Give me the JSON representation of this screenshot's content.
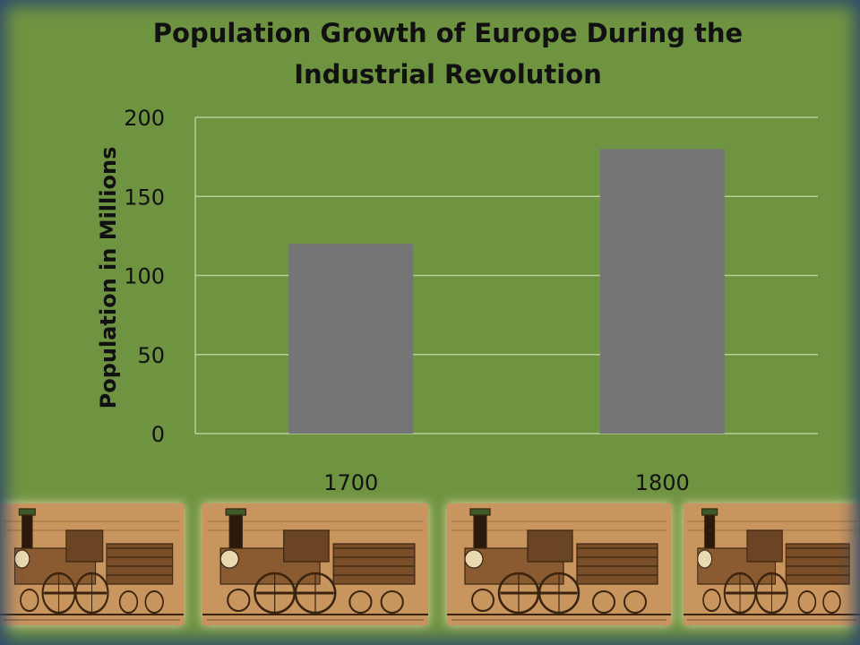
{
  "chart_data": {
    "type": "bar",
    "title": "Population Growth of Europe During the Industrial Revolution",
    "title_lines": [
      "Population Growth of Europe During the",
      "Industrial Revolution"
    ],
    "xlabel": "",
    "ylabel": "Population in Millions",
    "categories": [
      "1700",
      "1800"
    ],
    "values": [
      120,
      180
    ],
    "ylim": [
      0,
      200
    ],
    "yticks": [
      0,
      50,
      100,
      150,
      200
    ],
    "grid": true,
    "legend": "none",
    "bar_color": "#757575",
    "grid_color": "#b9cf9a"
  },
  "decorations": {
    "footer_images": [
      "locomotive-engraving",
      "locomotive-engraving",
      "locomotive-engraving",
      "locomotive-engraving"
    ],
    "sepia_color": "#c9955e"
  }
}
